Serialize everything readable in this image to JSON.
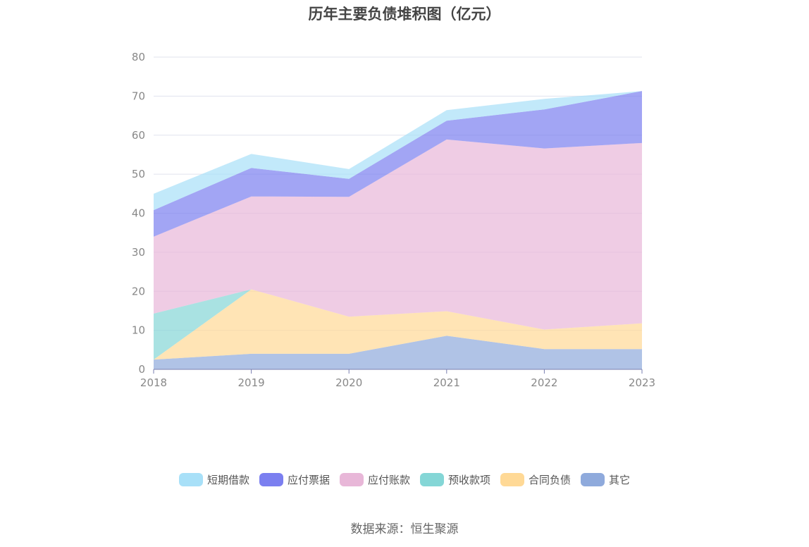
{
  "chart_data": {
    "type": "area",
    "stacked": true,
    "title": "历年主要负债堆积图（亿元）",
    "x": [
      "2018",
      "2019",
      "2020",
      "2021",
      "2022",
      "2023"
    ],
    "ylim": [
      0,
      80
    ],
    "yticks": [
      0,
      10,
      20,
      30,
      40,
      50,
      60,
      70,
      80
    ],
    "grid": true,
    "legend_position": "bottom",
    "series": [
      {
        "name": "其它",
        "color": "#8faadc",
        "values": [
          2.5,
          4.0,
          4.0,
          8.6,
          5.2,
          5.2
        ]
      },
      {
        "name": "合同负债",
        "color": "#ffd996",
        "values": [
          0.0,
          16.5,
          9.5,
          6.3,
          5.0,
          6.6
        ]
      },
      {
        "name": "预收款项",
        "color": "#84d6d6",
        "values": [
          11.8,
          0.0,
          0.0,
          0.0,
          0.0,
          0.0
        ]
      },
      {
        "name": "应付账款",
        "color": "#e8b7d8",
        "values": [
          19.7,
          23.8,
          30.7,
          44.0,
          46.4,
          46.2
        ]
      },
      {
        "name": "应付票据",
        "color": "#7b7ff0",
        "values": [
          6.8,
          7.3,
          4.6,
          4.8,
          10.0,
          13.3
        ]
      },
      {
        "name": "短期借款",
        "color": "#a8e0f8",
        "values": [
          4.2,
          3.6,
          2.5,
          2.7,
          2.7,
          0.0
        ]
      }
    ],
    "legend_order": [
      "短期借款",
      "应付票据",
      "应付账款",
      "预收款项",
      "合同负债",
      "其它"
    ]
  },
  "source": "数据来源：恒生聚源"
}
